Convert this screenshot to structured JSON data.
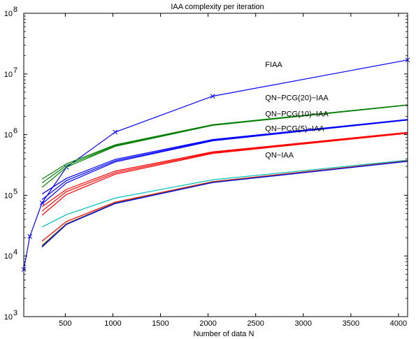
{
  "chart_data": {
    "type": "line",
    "title": "IAA complexity per iteration",
    "xlabel": "Number of data N",
    "ylabel": "",
    "xlim": [
      64,
      4096
    ],
    "ylim": [
      1000,
      100000000
    ],
    "yscale": "log",
    "grid": false,
    "legend": "none",
    "x_ticks": [
      500,
      1000,
      1500,
      2000,
      2500,
      3000,
      3500,
      4000
    ],
    "x_tick_labels": [
      "500",
      "1000",
      "1500",
      "2000",
      "2500",
      "3000",
      "3500",
      "4000"
    ],
    "y_ticks": [
      1000,
      10000,
      100000,
      1000000,
      10000000,
      100000000
    ],
    "y_tick_labels": [
      {
        "base": "10",
        "exp": "3"
      },
      {
        "base": "10",
        "exp": "4"
      },
      {
        "base": "10",
        "exp": "5"
      },
      {
        "base": "10",
        "exp": "6"
      },
      {
        "base": "10",
        "exp": "7"
      },
      {
        "base": "10",
        "exp": "8"
      }
    ],
    "annotations": [
      {
        "text": "FIAA",
        "x": 2600,
        "y": 13000000
      },
      {
        "text": "QN−PCG(20)−IAA",
        "x": 2600,
        "y": 3700000
      },
      {
        "text": "QN−PCG(10)−IAA",
        "x": 2600,
        "y": 2000000
      },
      {
        "text": "QN−PCG(5)−IAA",
        "x": 2600,
        "y": 1150000
      },
      {
        "text": "QN−IAA",
        "x": 2600,
        "y": 420000
      }
    ],
    "series": [
      {
        "color": "#0000ff",
        "marker": "x",
        "x": [
          64,
          128,
          256,
          512,
          1024,
          2048,
          4096
        ],
        "y": [
          6000,
          21000,
          75000,
          290000,
          1100000,
          4300000,
          17000000
        ]
      },
      {
        "color": "#008000",
        "marker": "",
        "x": [
          256,
          512,
          1024,
          2048,
          4096
        ],
        "y": [
          185000,
          330000,
          680000,
          1460000,
          3100000
        ]
      },
      {
        "color": "#008000",
        "marker": "",
        "x": [
          256,
          512,
          1024,
          2048,
          4096
        ],
        "y": [
          160000,
          310000,
          660000,
          1440000,
          3080000
        ]
      },
      {
        "color": "#008000",
        "marker": "",
        "x": [
          256,
          512,
          1024,
          2048,
          4096
        ],
        "y": [
          135000,
          290000,
          640000,
          1420000,
          3060000
        ]
      },
      {
        "color": "#0000ff",
        "marker": "",
        "x": [
          256,
          512,
          1024,
          2048,
          4096
        ],
        "y": [
          105000,
          190000,
          390000,
          830000,
          1780000
        ]
      },
      {
        "color": "#0000ff",
        "marker": "",
        "x": [
          256,
          512,
          1024,
          2048,
          4096
        ],
        "y": [
          85000,
          175000,
          370000,
          810000,
          1760000
        ]
      },
      {
        "color": "#0000ff",
        "marker": "",
        "x": [
          256,
          512,
          1024,
          2048,
          4096
        ],
        "y": [
          72000,
          160000,
          355000,
          790000,
          1740000
        ]
      },
      {
        "color": "#ff0000",
        "marker": "",
        "x": [
          256,
          512,
          1024,
          2048,
          4096
        ],
        "y": [
          65000,
          125000,
          250000,
          520000,
          1090000
        ]
      },
      {
        "color": "#ff0000",
        "marker": "",
        "x": [
          256,
          512,
          1024,
          2048,
          4096
        ],
        "y": [
          55000,
          115000,
          235000,
          505000,
          1070000
        ]
      },
      {
        "color": "#ff0000",
        "marker": "",
        "x": [
          256,
          512,
          1024,
          2048,
          4096
        ],
        "y": [
          47000,
          103000,
          222000,
          490000,
          1050000
        ]
      },
      {
        "color": "#00bfbf",
        "marker": "",
        "x": [
          256,
          512,
          1024,
          2048,
          4096
        ],
        "y": [
          30000,
          48000,
          90000,
          180000,
          380000
        ]
      },
      {
        "color": "#ff0000",
        "marker": "",
        "x": [
          256,
          512,
          1024,
          2048,
          4096
        ],
        "y": [
          17500,
          37000,
          77000,
          168000,
          370000
        ]
      },
      {
        "color": "#808000",
        "marker": "",
        "x": [
          256,
          512,
          1024,
          2048,
          4096
        ],
        "y": [
          15000,
          34000,
          75000,
          165000,
          366000
        ]
      },
      {
        "color": "#404040",
        "marker": "",
        "x": [
          256,
          512,
          1024,
          2048,
          4096
        ],
        "y": [
          14500,
          33500,
          74000,
          163000,
          364000
        ]
      },
      {
        "color": "#0000ff",
        "marker": "",
        "x": [
          256,
          512,
          1024,
          2048,
          4096
        ],
        "y": [
          14000,
          33000,
          73000,
          162000,
          362000
        ]
      }
    ]
  }
}
